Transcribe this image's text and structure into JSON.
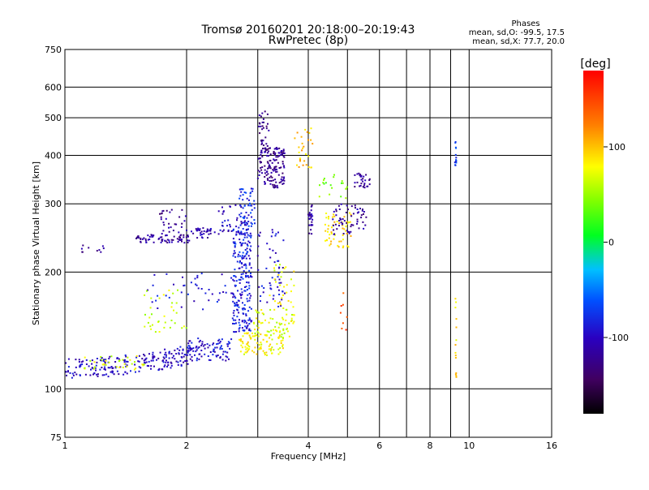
{
  "chart_data": {
    "type": "scatter",
    "title": "Tromsø 20160201 20:18:00–20:19:43",
    "subtitle": "RwPretec (8p)",
    "xlabel": "Frequency [MHz]",
    "ylabel": "Stationary phase Virtual Height [km]",
    "x_scale": "log",
    "y_scale": "log",
    "xlim": [
      1,
      16
    ],
    "ylim": [
      75,
      750
    ],
    "x_ticks": [
      1,
      2,
      4,
      6,
      8,
      10,
      16
    ],
    "x_tick_labels": [
      "1",
      "2",
      "4",
      "6",
      "8",
      "10",
      "16"
    ],
    "x_grid": [
      1,
      2,
      3,
      4,
      5,
      6,
      7,
      8,
      9,
      10,
      16
    ],
    "y_ticks": [
      75,
      100,
      200,
      300,
      400,
      500,
      600,
      750
    ],
    "y_tick_labels": [
      "75",
      "100",
      "200",
      "300",
      "400",
      "500",
      "600",
      "750"
    ],
    "grid": true,
    "info": {
      "heading": "Phases",
      "line1": "mean, sd,O: -99.5, 17.5",
      "line2": "mean, sd,X:  77.7, 20.0"
    },
    "colorbar": {
      "label": "[deg]",
      "min": -180,
      "max": 180,
      "ticks": [
        100,
        0,
        -100
      ],
      "tick_labels": [
        "100",
        "0",
        "-100"
      ]
    },
    "series": [
      {
        "values_unit": "phase_deg",
        "clusters": [
          {
            "x": [
              1.0,
              2.05
            ],
            "y": [
              112,
              125
            ],
            "phase": -100,
            "n": 220,
            "shape": "curve",
            "y_end": [
              112,
              122
            ]
          },
          {
            "x": [
              2.0,
              2.6
            ],
            "y": [
              118,
              135
            ],
            "phase": -95,
            "n": 90
          },
          {
            "x": [
              1.6,
              2.7
            ],
            "y": [
              160,
              200
            ],
            "phase": -90,
            "n": 45
          },
          {
            "x": [
              1.5,
              2.05
            ],
            "y": [
              238,
              250
            ],
            "phase": -115,
            "n": 70
          },
          {
            "x": [
              1.7,
              2.0
            ],
            "y": [
              250,
              290
            ],
            "phase": -120,
            "n": 30
          },
          {
            "x": [
              2.05,
              2.35
            ],
            "y": [
              245,
              260
            ],
            "phase": -110,
            "n": 35
          },
          {
            "x": [
              2.4,
              2.85
            ],
            "y": [
              250,
              300
            ],
            "phase": -100,
            "n": 45
          },
          {
            "x": [
              2.6,
              2.9
            ],
            "y": [
              140,
              260
            ],
            "phase": -85,
            "n": 220
          },
          {
            "x": [
              2.7,
              2.95
            ],
            "y": [
              260,
              330
            ],
            "phase": -80,
            "n": 50
          },
          {
            "x": [
              3.0,
              3.5
            ],
            "y": [
              330,
              420
            ],
            "phase": -120,
            "n": 150
          },
          {
            "x": [
              3.0,
              3.2
            ],
            "y": [
              420,
              520
            ],
            "phase": -125,
            "n": 30
          },
          {
            "x": [
              3.0,
              3.5
            ],
            "y": [
              160,
              260
            ],
            "phase": -95,
            "n": 55
          },
          {
            "x": [
              2.7,
              3.5
            ],
            "y": [
              122,
              140
            ],
            "phase": 80,
            "n": 90
          },
          {
            "x": [
              2.9,
              3.7
            ],
            "y": [
              135,
              160
            ],
            "phase": 70,
            "n": 70
          },
          {
            "x": [
              3.2,
              3.7
            ],
            "y": [
              160,
              210
            ],
            "phase": 75,
            "n": 30
          },
          {
            "x": [
              1.1,
              1.6
            ],
            "y": [
              112,
              122
            ],
            "phase": 70,
            "n": 35
          },
          {
            "x": [
              1.55,
              2.0
            ],
            "y": [
              140,
              180
            ],
            "phase": 65,
            "n": 35
          },
          {
            "x": [
              1.1,
              1.25
            ],
            "y": [
              225,
              235
            ],
            "phase": -120,
            "n": 10
          },
          {
            "x": [
              4.0,
              4.1
            ],
            "y": [
              250,
              300
            ],
            "phase": -115,
            "n": 25
          },
          {
            "x": [
              3.7,
              4.1
            ],
            "y": [
              370,
              480
            ],
            "phase": 100,
            "n": 30
          },
          {
            "x": [
              4.4,
              5.1
            ],
            "y": [
              230,
              285
            ],
            "phase": 90,
            "n": 55
          },
          {
            "x": [
              4.6,
              5.6
            ],
            "y": [
              250,
              300
            ],
            "phase": -115,
            "n": 60
          },
          {
            "x": [
              5.2,
              5.7
            ],
            "y": [
              330,
              360
            ],
            "phase": -120,
            "n": 30
          },
          {
            "x": [
              4.2,
              5.0
            ],
            "y": [
              310,
              360
            ],
            "phase": 40,
            "n": 20
          },
          {
            "x": [
              9.2,
              9.3
            ],
            "y": [
              375,
              440
            ],
            "phase": -70,
            "n": 14
          },
          {
            "x": [
              9.25,
              9.3
            ],
            "y": [
              105,
              175
            ],
            "phase": 90,
            "n": 14
          },
          {
            "x": [
              4.8,
              5.0
            ],
            "y": [
              140,
              180
            ],
            "phase": 150,
            "n": 8
          }
        ]
      }
    ]
  }
}
